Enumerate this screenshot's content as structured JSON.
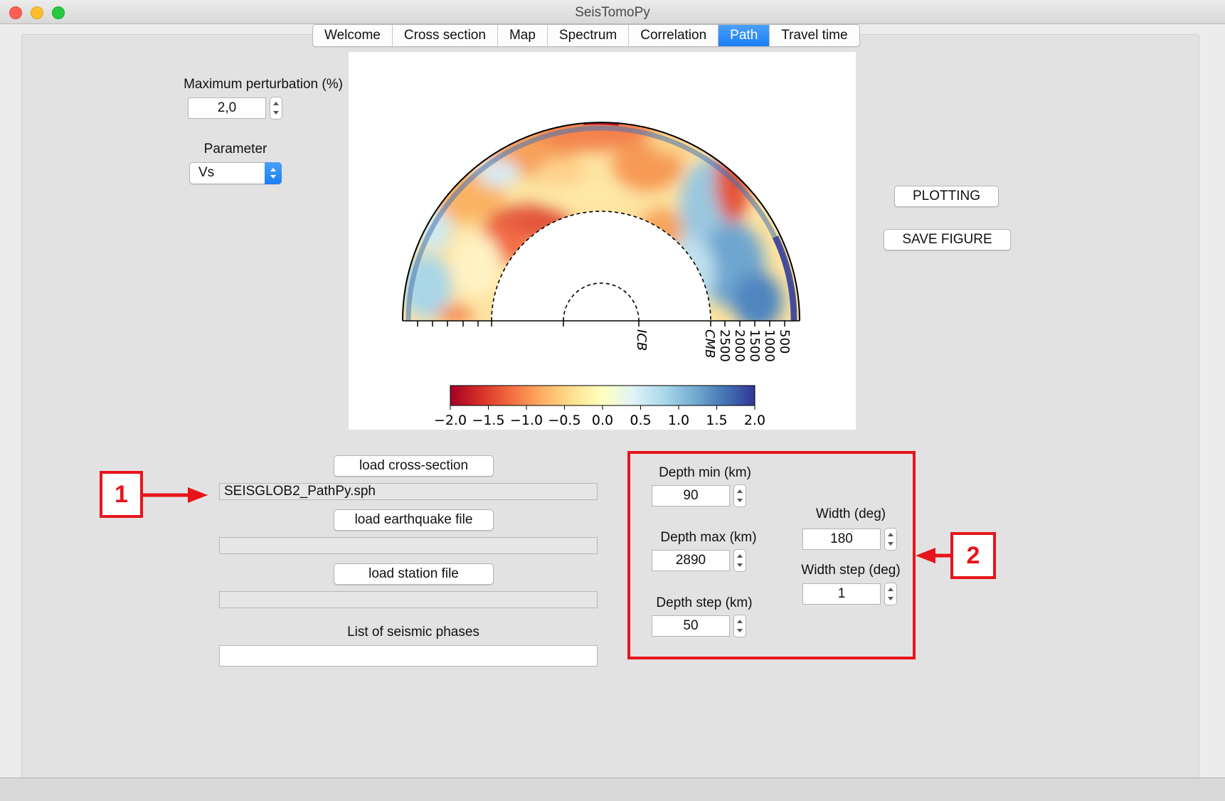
{
  "window": {
    "title": "SeisTomoPy"
  },
  "tabs": [
    {
      "label": "Welcome",
      "active": false
    },
    {
      "label": "Cross section",
      "active": false
    },
    {
      "label": "Map",
      "active": false
    },
    {
      "label": "Spectrum",
      "active": false
    },
    {
      "label": "Correlation",
      "active": false
    },
    {
      "label": "Path",
      "active": true
    },
    {
      "label": "Travel time",
      "active": false
    }
  ],
  "left_panel": {
    "max_perturbation_label": "Maximum perturbation (%)",
    "max_perturbation_value": "2,0",
    "parameter_label": "Parameter",
    "parameter_value": "Vs"
  },
  "buttons": {
    "plotting": "PLOTTING",
    "save_figure": "SAVE FIGURE",
    "load_cross_section": "load cross-section",
    "load_earthquake_file": "load earthquake file",
    "load_station_file": "load station file"
  },
  "files": {
    "cross_section_file": "SEISGLOB2_PathPy.sph",
    "earthquake_file": "",
    "station_file": ""
  },
  "seismic_phases": {
    "label": "List of seismic phases",
    "value": ""
  },
  "depth_width": {
    "depth_min_label": "Depth min (km)",
    "depth_min_value": "90",
    "depth_max_label": "Depth max (km)",
    "depth_max_value": "2890",
    "depth_step_label": "Depth step (km)",
    "depth_step_value": "50",
    "width_label": "Width (deg)",
    "width_value": "180",
    "width_step_label": "Width step (deg)",
    "width_step_value": "1"
  },
  "annotations": {
    "marker_1": "1",
    "marker_2": "2"
  },
  "colors": {
    "annotation_red": "#e8141b",
    "tab_active": "#1a7ef4"
  },
  "chart_data": {
    "type": "heatmap",
    "title": "",
    "depth_tick_labels": [
      "500",
      "1000",
      "1500",
      "2000",
      "2500",
      "CMB"
    ],
    "inner_label": "ICB",
    "colorbar": {
      "min": -2.0,
      "max": 2.0,
      "ticks": [
        "−2.0",
        "−1.5",
        "−1.0",
        "−0.5",
        "0.0",
        "0.5",
        "1.0",
        "1.5",
        "2.0"
      ],
      "colormap": "RdYlBu"
    }
  }
}
